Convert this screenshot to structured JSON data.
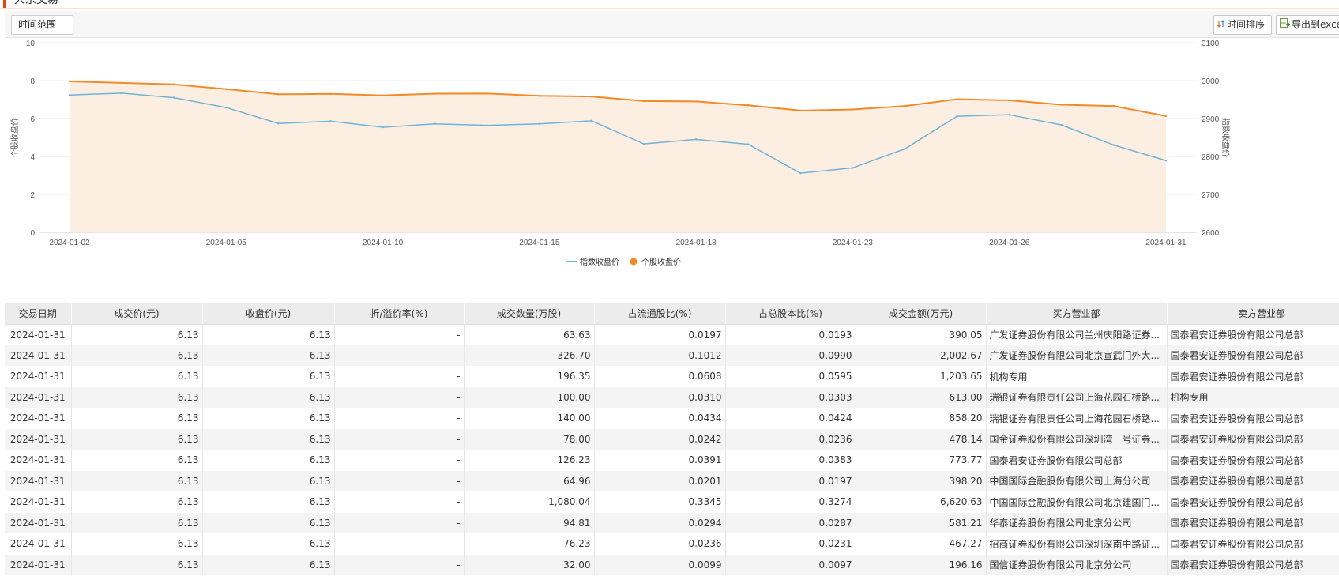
{
  "page": {
    "title": "大宗交易"
  },
  "toolbar": {
    "range_label": "时间范围",
    "sort_label": "时间排序",
    "export_label": "导出到excel"
  },
  "chart_data": {
    "type": "line",
    "x": [
      "2024-01-02",
      "2024-01-03",
      "2024-01-04",
      "2024-01-05",
      "2024-01-08",
      "2024-01-09",
      "2024-01-10",
      "2024-01-11",
      "2024-01-12",
      "2024-01-15",
      "2024-01-16",
      "2024-01-17",
      "2024-01-18",
      "2024-01-19",
      "2024-01-22",
      "2024-01-23",
      "2024-01-24",
      "2024-01-25",
      "2024-01-26",
      "2024-01-29",
      "2024-01-30",
      "2024-01-31"
    ],
    "x_tick_labels": [
      "2024-01-02",
      "2024-01-05",
      "2024-01-10",
      "2024-01-15",
      "2024-01-18",
      "2024-01-23",
      "2024-01-26",
      "2024-01-31"
    ],
    "series": [
      {
        "name": "指数收盘价",
        "axis": "right",
        "color": "#6fb3d9",
        "values": [
          2962,
          2967,
          2955,
          2929,
          2887,
          2893,
          2877,
          2886,
          2882,
          2886,
          2894,
          2833,
          2845,
          2832,
          2756,
          2770,
          2820,
          2906,
          2910,
          2883,
          2830,
          2789
        ]
      },
      {
        "name": "个股收盘价",
        "axis": "left",
        "color": "#f28a28",
        "area_color": "#fdeee2",
        "values": [
          7.96,
          7.88,
          7.8,
          7.55,
          7.28,
          7.3,
          7.22,
          7.31,
          7.32,
          7.2,
          7.16,
          6.92,
          6.9,
          6.7,
          6.42,
          6.48,
          6.66,
          7.02,
          6.96,
          6.73,
          6.66,
          6.13
        ]
      }
    ],
    "ylabel": "个股收盘价",
    "ylabel_right": "指数收盘价",
    "ylim": [
      0,
      10
    ],
    "ylim_right": [
      2600,
      3100
    ],
    "yticks": [
      0,
      2,
      4,
      6,
      8,
      10
    ],
    "yticks_right": [
      2600,
      2700,
      2800,
      2900,
      3000,
      3100
    ],
    "grid": true,
    "legend_position": "bottom-center"
  },
  "table": {
    "columns": [
      "交易日期",
      "成交价(元)",
      "收盘价(元)",
      "折/溢价率(%)",
      "成交数量(万股)",
      "占流通股比(%)",
      "占总股本比(%)",
      "成交金额(万元)",
      "买方营业部",
      "卖方营业部"
    ],
    "rows": [
      [
        "2024-01-31",
        "6.13",
        "6.13",
        "-",
        "63.63",
        "0.0197",
        "0.0193",
        "390.05",
        "广发证券股份有限公司兰州庆阳路证券...",
        "国泰君安证券股份有限公司总部"
      ],
      [
        "2024-01-31",
        "6.13",
        "6.13",
        "-",
        "326.70",
        "0.1012",
        "0.0990",
        "2,002.67",
        "广发证券股份有限公司北京宣武门外大...",
        "国泰君安证券股份有限公司总部"
      ],
      [
        "2024-01-31",
        "6.13",
        "6.13",
        "-",
        "196.35",
        "0.0608",
        "0.0595",
        "1,203.65",
        "机构专用",
        "国泰君安证券股份有限公司总部"
      ],
      [
        "2024-01-31",
        "6.13",
        "6.13",
        "-",
        "100.00",
        "0.0310",
        "0.0303",
        "613.00",
        "瑞银证券有限责任公司上海花园石桥路...",
        "机构专用"
      ],
      [
        "2024-01-31",
        "6.13",
        "6.13",
        "-",
        "140.00",
        "0.0434",
        "0.0424",
        "858.20",
        "瑞银证券有限责任公司上海花园石桥路...",
        "国泰君安证券股份有限公司总部"
      ],
      [
        "2024-01-31",
        "6.13",
        "6.13",
        "-",
        "78.00",
        "0.0242",
        "0.0236",
        "478.14",
        "国金证券股份有限公司深圳湾一号证券...",
        "国泰君安证券股份有限公司总部"
      ],
      [
        "2024-01-31",
        "6.13",
        "6.13",
        "-",
        "126.23",
        "0.0391",
        "0.0383",
        "773.77",
        "国泰君安证券股份有限公司总部",
        "国泰君安证券股份有限公司总部"
      ],
      [
        "2024-01-31",
        "6.13",
        "6.13",
        "-",
        "64.96",
        "0.0201",
        "0.0197",
        "398.20",
        "中国国际金融股份有限公司上海分公司",
        "国泰君安证券股份有限公司总部"
      ],
      [
        "2024-01-31",
        "6.13",
        "6.13",
        "-",
        "1,080.04",
        "0.3345",
        "0.3274",
        "6,620.63",
        "中国国际金融股份有限公司北京建国门...",
        "国泰君安证券股份有限公司总部"
      ],
      [
        "2024-01-31",
        "6.13",
        "6.13",
        "-",
        "94.81",
        "0.0294",
        "0.0287",
        "581.21",
        "华泰证券股份有限公司北京分公司",
        "国泰君安证券股份有限公司总部"
      ],
      [
        "2024-01-31",
        "6.13",
        "6.13",
        "-",
        "76.23",
        "0.0236",
        "0.0231",
        "467.27",
        "招商证券股份有限公司深圳深南中路证...",
        "国泰君安证券股份有限公司总部"
      ],
      [
        "2024-01-31",
        "6.13",
        "6.13",
        "-",
        "32.00",
        "0.0099",
        "0.0097",
        "196.16",
        "国信证券股份有限公司北京分公司",
        "国泰君安证券股份有限公司总部"
      ]
    ]
  }
}
